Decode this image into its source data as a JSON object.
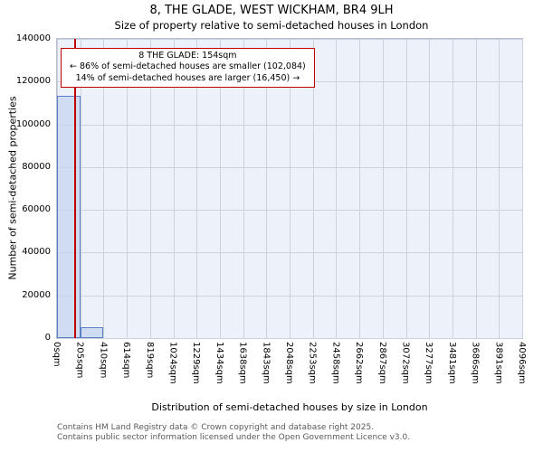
{
  "title": "8, THE GLADE, WEST WICKHAM, BR4 9LH",
  "subtitle": "Size of property relative to semi-detached houses in London",
  "annotation": {
    "line1": "8 THE GLADE: 154sqm",
    "line2": "← 86% of semi-detached houses are smaller (102,084)",
    "line3": "14% of semi-detached houses are larger (16,450) →"
  },
  "footer": {
    "line1": "Contains HM Land Registry data © Crown copyright and database right 2025.",
    "line2": "Contains public sector information licensed under the Open Government Licence v3.0."
  },
  "chart_data": {
    "type": "bar",
    "title": "8, THE GLADE, WEST WICKHAM, BR4 9LH",
    "subtitle": "Size of property relative to semi-detached houses in London",
    "xlabel": "Distribution of semi-detached houses by size in London",
    "ylabel": "Number of semi-detached properties",
    "categories": [
      "0sqm",
      "205sqm",
      "410sqm",
      "614sqm",
      "819sqm",
      "1024sqm",
      "1229sqm",
      "1434sqm",
      "1638sqm",
      "1843sqm",
      "2048sqm",
      "2253sqm",
      "2458sqm",
      "2662sqm",
      "2867sqm",
      "3072sqm",
      "3277sqm",
      "3481sqm",
      "3686sqm",
      "3891sqm",
      "4096sqm"
    ],
    "values": [
      113500,
      5000,
      0,
      0,
      0,
      0,
      0,
      0,
      0,
      0,
      0,
      0,
      0,
      0,
      0,
      0,
      0,
      0,
      0,
      0
    ],
    "ylim": [
      0,
      140000
    ],
    "yticks": [
      0,
      20000,
      40000,
      60000,
      80000,
      100000,
      120000,
      140000
    ],
    "x_range_sqm": [
      0,
      4096
    ],
    "marker_value_sqm": 154,
    "grid": true,
    "colors": {
      "bar_fill": "#c6d4ee",
      "bar_edge": "#5b7fc4",
      "marker": "#c00000",
      "plot_bg": "#edf1fa",
      "grid": "#ccd1de"
    }
  }
}
